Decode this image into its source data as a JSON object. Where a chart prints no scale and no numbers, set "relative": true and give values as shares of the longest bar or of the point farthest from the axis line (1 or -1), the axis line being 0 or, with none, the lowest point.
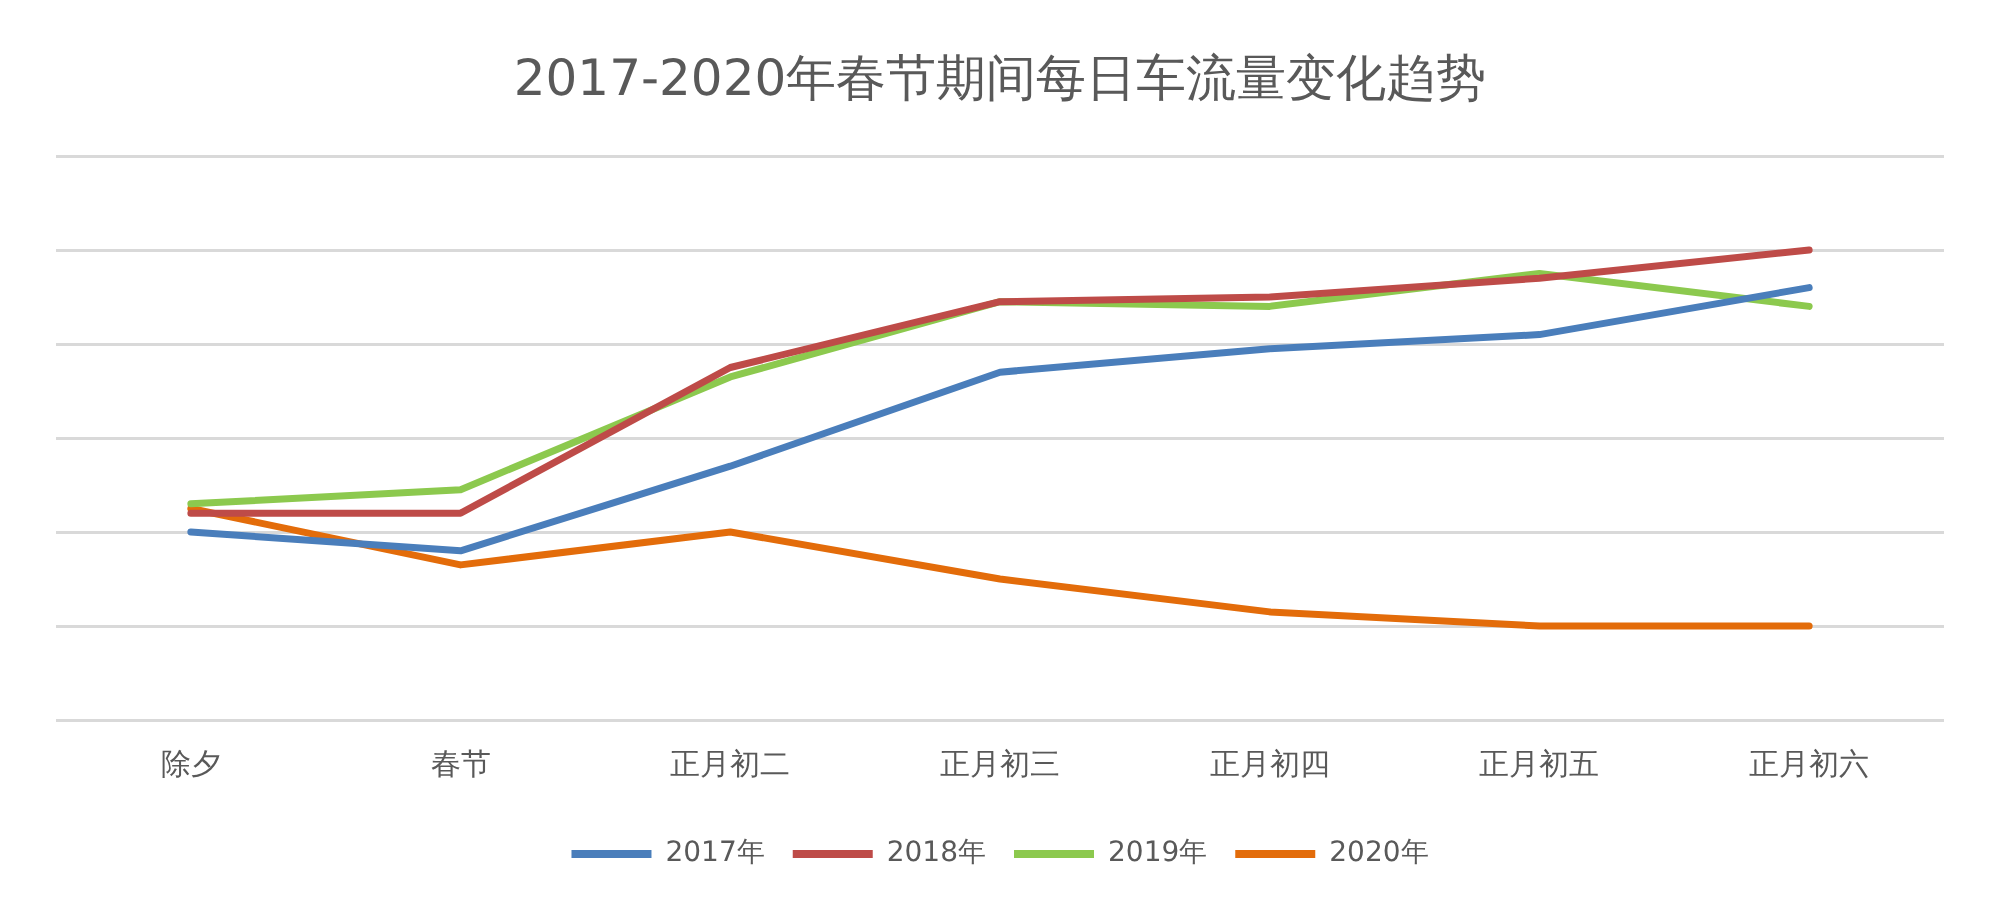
{
  "chart_data": {
    "type": "line",
    "title": "2017-2020年春节期间每日车流量变化趋势",
    "relative": true,
    "grid": "y",
    "legend": "bottom",
    "marker": "none",
    "line_style": "solid",
    "categories": [
      "除夕",
      "春节",
      "正月初二",
      "正月初三",
      "正月初四",
      "正月初五",
      "正月初六"
    ],
    "series": [
      {
        "name": "2017年",
        "color": "#4a7ebb",
        "values": [
          0.4,
          0.36,
          0.54,
          0.74,
          0.79,
          0.82,
          0.92
        ]
      },
      {
        "name": "2018年",
        "color": "#be4b48",
        "values": [
          0.44,
          0.44,
          0.75,
          0.89,
          0.9,
          0.94,
          1
        ]
      },
      {
        "name": "2019年",
        "color": "#8cc94e",
        "values": [
          0.46,
          0.49,
          0.73,
          0.89,
          0.88,
          0.95,
          0.88
        ]
      },
      {
        "name": "2020年",
        "color": "#e36c0a",
        "values": [
          0.45,
          0.33,
          0.4,
          0.3,
          0.23,
          0.2,
          0.2
        ]
      }
    ]
  }
}
